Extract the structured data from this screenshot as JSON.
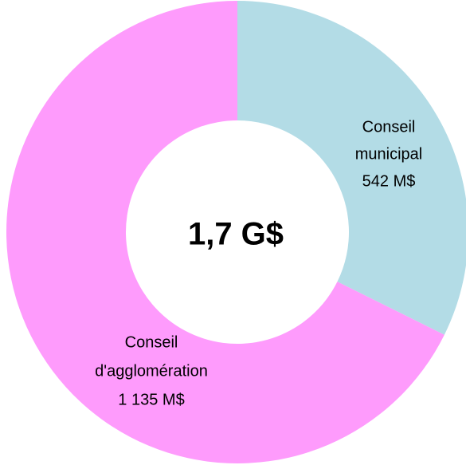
{
  "chart_data": {
    "type": "donut",
    "center_label": "1,7 G$",
    "categories": [
      [
        "Conseil",
        "municipal"
      ],
      [
        "Conseil",
        "d'agglomération"
      ]
    ],
    "values": [
      542,
      1135
    ],
    "value_labels": [
      "542 M$",
      "1 135 M$"
    ],
    "colors": [
      "#b3dce6",
      "#fe9bfc"
    ]
  }
}
